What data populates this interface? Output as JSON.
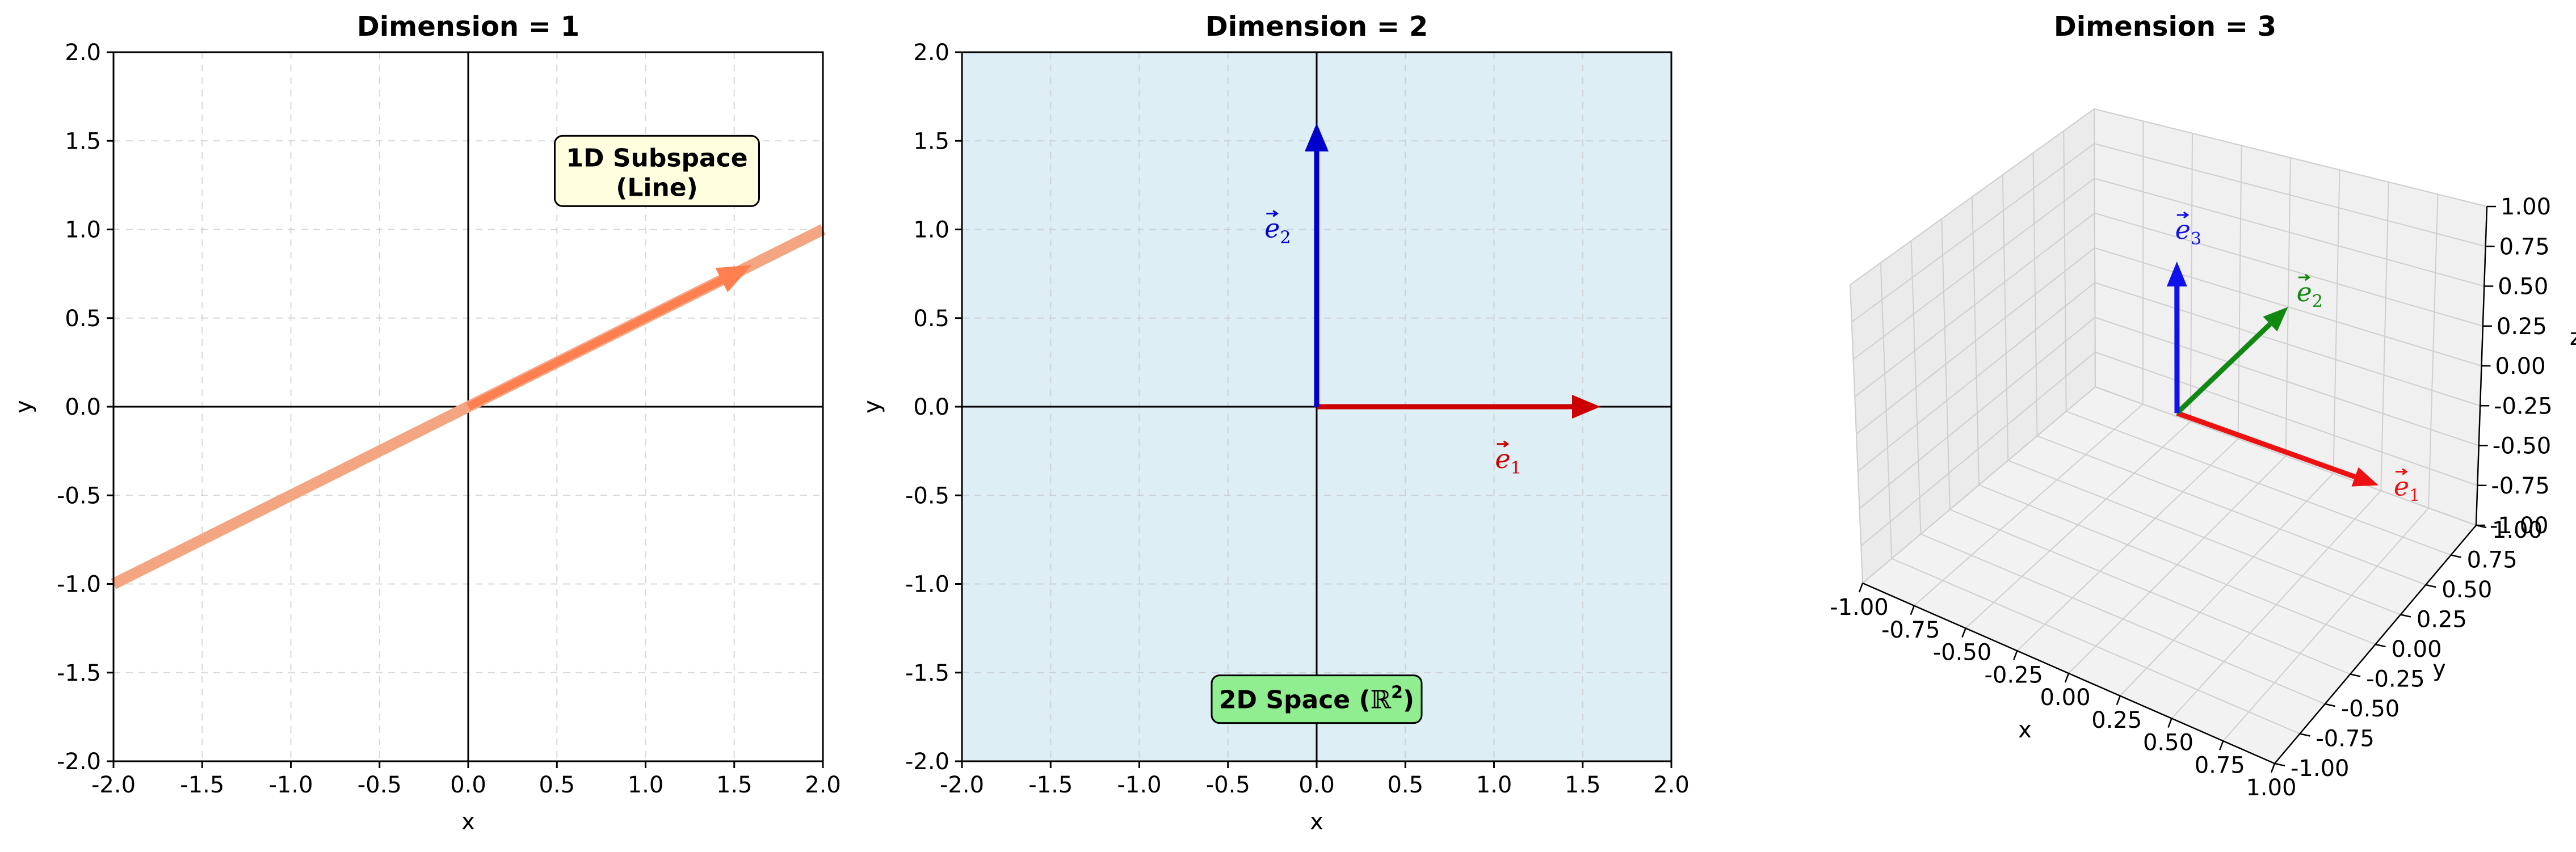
{
  "chart_data": [
    {
      "type": "line",
      "title": "Dimension = 1",
      "xlabel": "x",
      "ylabel": "y",
      "xlim": [
        -2.0,
        2.0
      ],
      "ylim": [
        -2.0,
        2.0
      ],
      "xticks": [
        "-2.0",
        "-1.5",
        "-1.0",
        "-0.5",
        "0.0",
        "0.5",
        "1.0",
        "1.5",
        "2.0"
      ],
      "yticks": [
        "-2.0",
        "-1.5",
        "-1.0",
        "-0.5",
        "0.0",
        "0.5",
        "1.0",
        "1.5",
        "2.0"
      ],
      "grid": true,
      "line": {
        "x": [
          -2.0,
          2.0
        ],
        "y": [
          -1.0,
          1.0
        ]
      },
      "vector": {
        "from": [
          0,
          0
        ],
        "to": [
          1.6,
          0.8
        ]
      },
      "annotation": {
        "lines": [
          "1D Subspace",
          "(Line)"
        ],
        "at": [
          1.0,
          1.33
        ]
      },
      "colors": {
        "line": "#f4a582",
        "vector": "#ff7f50",
        "box": "#ffffe0"
      }
    },
    {
      "type": "line",
      "title": "Dimension = 2",
      "xlabel": "x",
      "ylabel": "y",
      "xlim": [
        -2.0,
        2.0
      ],
      "ylim": [
        -2.0,
        2.0
      ],
      "xticks": [
        "-2.0",
        "-1.5",
        "-1.0",
        "-0.5",
        "0.0",
        "0.5",
        "1.0",
        "1.5",
        "2.0"
      ],
      "yticks": [
        "-2.0",
        "-1.5",
        "-1.0",
        "-0.5",
        "0.0",
        "0.5",
        "1.0",
        "1.5",
        "2.0"
      ],
      "grid": true,
      "vectors": [
        {
          "name": "e1",
          "label": "e",
          "sub": "1",
          "to": [
            1.6,
            0
          ],
          "color": "#cc0000",
          "label_at": [
            1.08,
            -0.3
          ]
        },
        {
          "name": "e2",
          "label": "e",
          "sub": "2",
          "to": [
            0,
            1.6
          ],
          "color": "#0000cc",
          "label_at": [
            -0.22,
            1.0
          ]
        }
      ],
      "annotation": {
        "text": "2D Space (",
        "math": "ℝ",
        "sup": "2",
        "close": ")",
        "at": [
          0,
          -1.65
        ]
      },
      "colors": {
        "background": "#ddeef5",
        "box": "#90ee90"
      }
    },
    {
      "type": "line",
      "title": "Dimension = 3",
      "xlabel": "x",
      "ylabel": "y",
      "zlabel": "z",
      "xlim": [
        -1.0,
        1.0
      ],
      "ylim": [
        -1.0,
        1.0
      ],
      "zlim": [
        -1.0,
        1.0
      ],
      "xticks": [
        "-1.00",
        "-0.75",
        "-0.50",
        "-0.25",
        "0.00",
        "0.25",
        "0.50",
        "0.75",
        "1.00"
      ],
      "yticks": [
        "-1.00",
        "-0.75",
        "-0.50",
        "-0.25",
        "0.00",
        "0.25",
        "0.50",
        "0.75",
        "1.00"
      ],
      "zticks": [
        "-1.00",
        "-0.75",
        "-0.50",
        "-0.25",
        "0.00",
        "0.25",
        "0.50",
        "0.75",
        "1.00"
      ],
      "grid": true,
      "vectors": [
        {
          "name": "e1",
          "label": "e",
          "sub": "1",
          "to": [
            1,
            0,
            0
          ],
          "color": "#ee1111"
        },
        {
          "name": "e2",
          "label": "e",
          "sub": "2",
          "to": [
            0,
            1,
            0
          ],
          "color": "#118811"
        },
        {
          "name": "e3",
          "label": "e",
          "sub": "3",
          "to": [
            0,
            0,
            1
          ],
          "color": "#1111ee"
        }
      ]
    }
  ]
}
